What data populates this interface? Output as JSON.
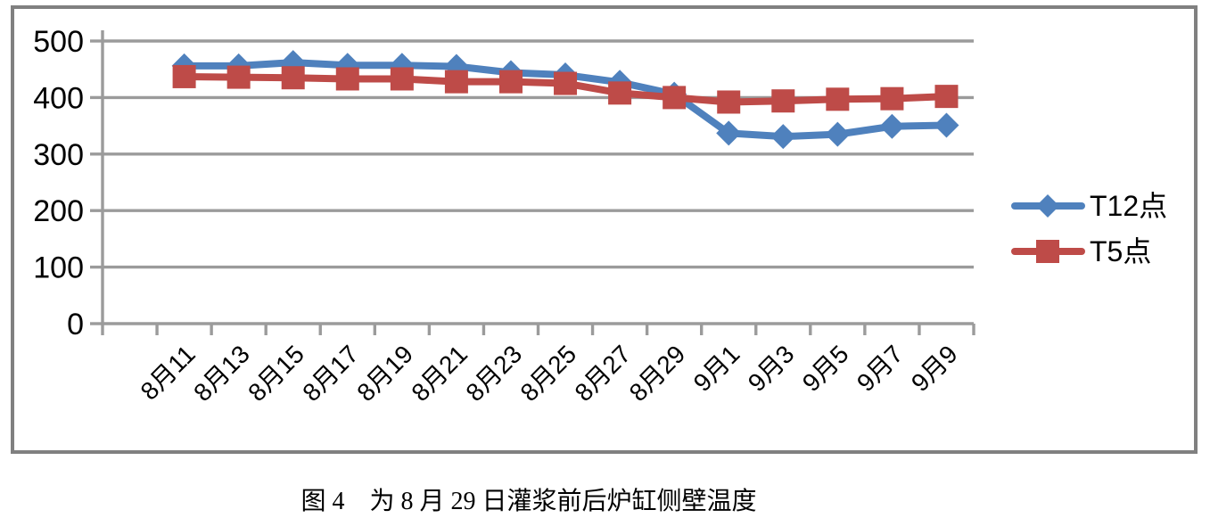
{
  "figure": {
    "caption": "图 4　为 8 月 29 日灌浆前后炉缸侧壁温度"
  },
  "legend": {
    "items": [
      {
        "label": "T12点",
        "marker": "diamond",
        "color": "#4F81BD"
      },
      {
        "label": "T5点",
        "marker": "square",
        "color": "#BE4B48"
      }
    ]
  },
  "colors": {
    "series_blue": "#4F81BD",
    "series_red": "#BE4B48",
    "gridline": "#9B9B9B",
    "axis": "#9B9B9B",
    "frame_border": "#808080",
    "text": "#000000",
    "background": "#FFFFFF"
  },
  "chart_data": {
    "type": "line",
    "title": "",
    "xlabel": "",
    "ylabel": "",
    "categories": [
      "8月11",
      "8月13",
      "8月15",
      "8月17",
      "8月19",
      "8月21",
      "8月23",
      "8月25",
      "8月27",
      "8月29",
      "9月1",
      "9月3",
      "9月5",
      "9月7",
      "9月9"
    ],
    "series": [
      {
        "name": "T12点",
        "marker": "diamond",
        "color": "#4F81BD",
        "values": [
          456,
          456,
          462,
          457,
          457,
          455,
          444,
          440,
          427,
          406,
          337,
          331,
          335,
          349,
          351
        ]
      },
      {
        "name": "T5点",
        "marker": "square",
        "color": "#BE4B48",
        "values": [
          437,
          436,
          435,
          433,
          433,
          428,
          428,
          425,
          408,
          400,
          392,
          394,
          397,
          398,
          402
        ]
      }
    ],
    "ylim": [
      0,
      500
    ],
    "y_ticks": [
      0,
      100,
      200,
      300,
      400,
      500
    ],
    "grid": true,
    "legend_position": "right",
    "x_tick_label_rotation": -45
  }
}
